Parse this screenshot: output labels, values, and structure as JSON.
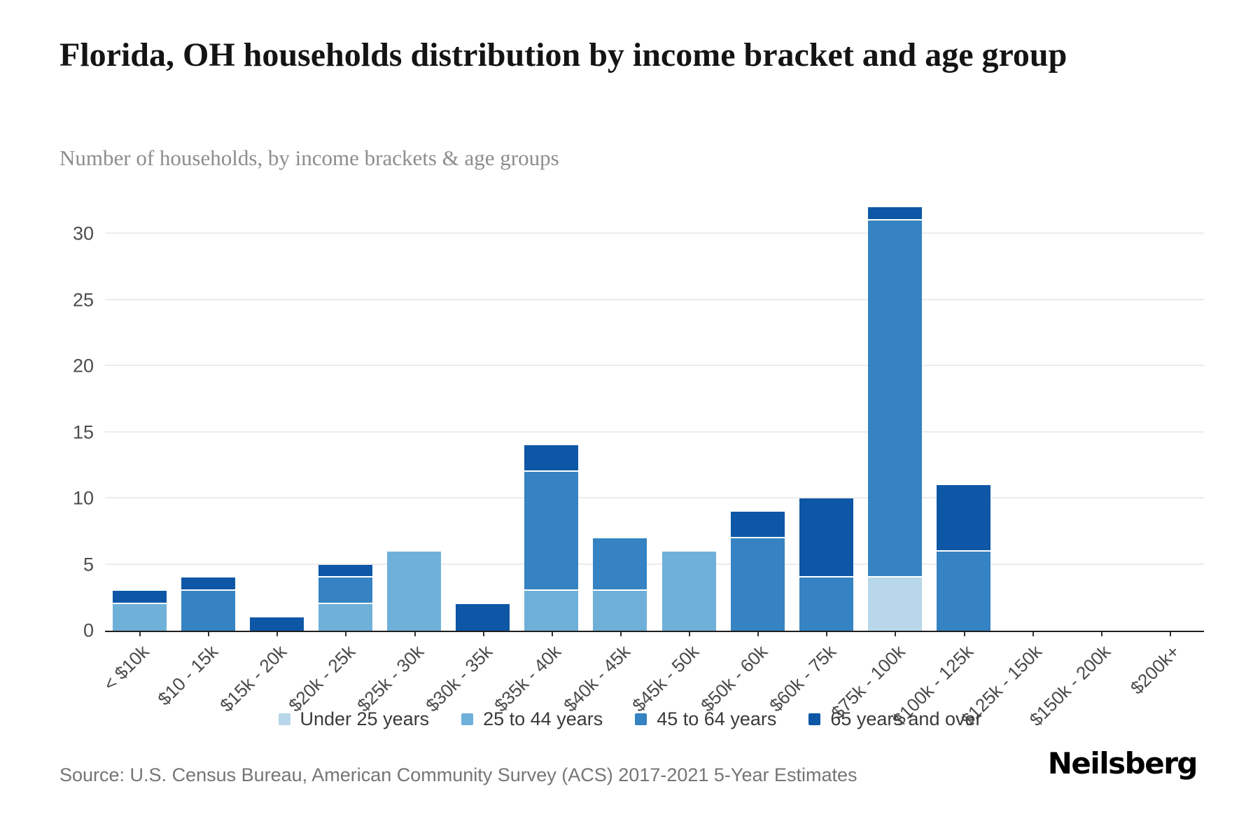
{
  "header": {
    "title": "Florida, OH households distribution by income bracket and age group",
    "subtitle": "Number of households, by income brackets & age groups"
  },
  "chart_data": {
    "type": "bar",
    "stacked": true,
    "title": "Florida, OH households distribution by income bracket and age group",
    "xlabel": "",
    "ylabel": "Number of households",
    "yticks": [
      0,
      5,
      10,
      15,
      20,
      25,
      30
    ],
    "ylim": [
      0,
      33
    ],
    "grid": true,
    "legend_position": "bottom",
    "categories": [
      "< $10k",
      "$10 - 15k",
      "$15k - 20k",
      "$20k - 25k",
      "$25k - 30k",
      "$30k - 35k",
      "$35k - 40k",
      "$40k - 45k",
      "$45k - 50k",
      "$50k - 60k",
      "$60k - 75k",
      "$75k - 100k",
      "$100k - 125k",
      "$125k - 150k",
      "$150k - 200k",
      "$200k+"
    ],
    "series": [
      {
        "name": "Under 25 years",
        "color": "#b9d7ea",
        "values": [
          0,
          0,
          0,
          0,
          0,
          0,
          0,
          0,
          0,
          0,
          0,
          4,
          0,
          0,
          0,
          0
        ]
      },
      {
        "name": "25 to 44 years",
        "color": "#6fb0d9",
        "values": [
          2,
          0,
          0,
          2,
          6,
          0,
          3,
          3,
          6,
          0,
          0,
          0,
          0,
          0,
          0,
          0
        ]
      },
      {
        "name": "45 to 64 years",
        "color": "#3583c2",
        "values": [
          0,
          3,
          0,
          2,
          0,
          0,
          9,
          4,
          0,
          7,
          4,
          27,
          6,
          0,
          0,
          0
        ]
      },
      {
        "name": "65 years and over",
        "color": "#0d57a6",
        "values": [
          1,
          1,
          1,
          1,
          0,
          2,
          2,
          0,
          0,
          2,
          6,
          1,
          5,
          0,
          0,
          0
        ]
      }
    ],
    "totals": [
      3,
      4,
      1,
      5,
      6,
      2,
      14,
      7,
      6,
      9,
      10,
      32,
      11,
      0,
      0,
      0
    ]
  },
  "footer": {
    "source": "Source: U.S. Census Bureau, American Community Survey (ACS) 2017-2021 5-Year Estimates",
    "logo": "Neilsberg"
  }
}
